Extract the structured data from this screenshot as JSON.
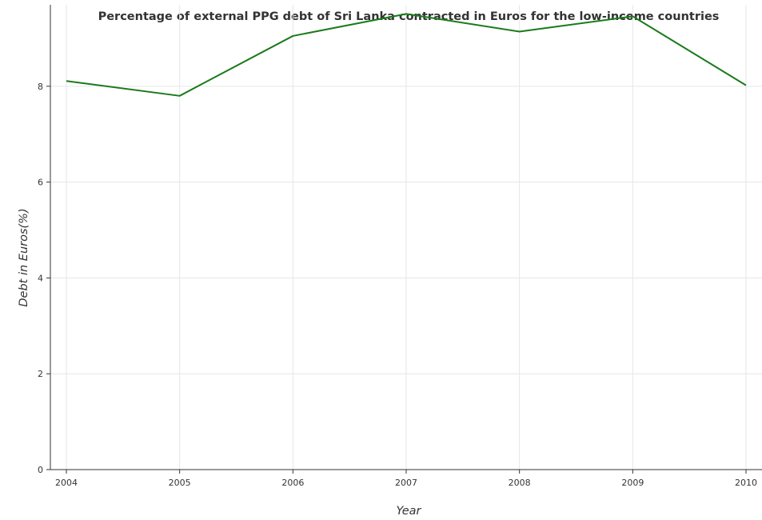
{
  "chart_data": {
    "type": "line",
    "title": "Percentage of external PPG debt of Sri Lanka contracted in Euros for the low-income countries",
    "xlabel": "Year",
    "ylabel": "Debt in Euros(%)",
    "categories": [
      "2004",
      "2005",
      "2006",
      "2007",
      "2008",
      "2009",
      "2010"
    ],
    "y_ticks": [
      "0",
      "2",
      "4",
      "6",
      "8"
    ],
    "ylim": [
      0,
      9.7
    ],
    "grid": true,
    "series": [
      {
        "color": "#1b7a1b",
        "values": [
          8.11,
          7.8,
          9.05,
          9.51,
          9.14,
          9.46,
          8.02
        ]
      }
    ]
  }
}
